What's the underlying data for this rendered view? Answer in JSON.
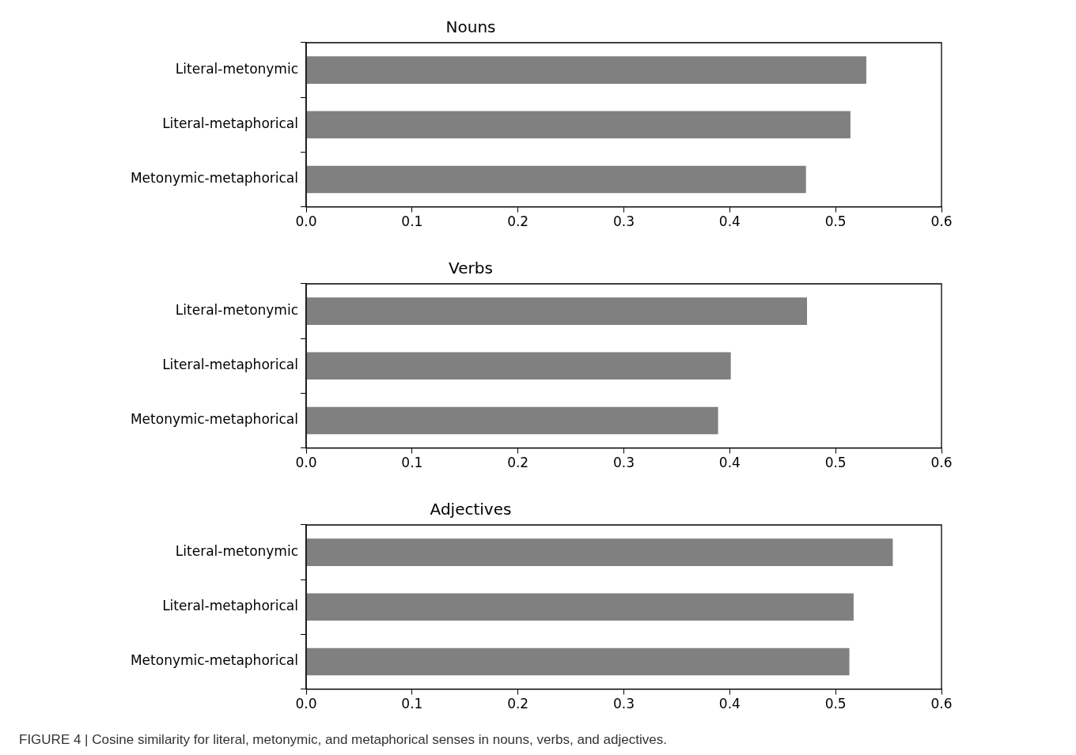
{
  "chart_data": [
    {
      "type": "bar",
      "orientation": "horizontal",
      "title": "Nouns",
      "categories": [
        "Literal-metonymic",
        "Literal-metaphorical",
        "Metonymic-metaphorical"
      ],
      "values": [
        0.529,
        0.514,
        0.472
      ],
      "color": "#808080",
      "xlim": [
        0,
        0.6
      ],
      "xticks": [
        {
          "value": 0,
          "label": "0.0"
        },
        {
          "value": 0.1,
          "label": "0.1"
        },
        {
          "value": 0.2,
          "label": "0.2"
        },
        {
          "value": 0.3,
          "label": "0.3"
        },
        {
          "value": 0.4,
          "label": "0.4"
        },
        {
          "value": 0.5,
          "label": "0.5"
        },
        {
          "value": 0.6,
          "label": "0.6"
        }
      ],
      "grid": false,
      "legend": false
    },
    {
      "type": "bar",
      "orientation": "horizontal",
      "title": "Verbs",
      "categories": [
        "Literal-metonymic",
        "Literal-metaphorical",
        "Metonymic-metaphorical"
      ],
      "values": [
        0.473,
        0.401,
        0.389
      ],
      "color": "#808080",
      "xlim": [
        0,
        0.6
      ],
      "xticks": [
        {
          "value": 0,
          "label": "0.0"
        },
        {
          "value": 0.1,
          "label": "0.1"
        },
        {
          "value": 0.2,
          "label": "0.2"
        },
        {
          "value": 0.3,
          "label": "0.3"
        },
        {
          "value": 0.4,
          "label": "0.4"
        },
        {
          "value": 0.5,
          "label": "0.5"
        },
        {
          "value": 0.6,
          "label": "0.6"
        }
      ],
      "grid": false,
      "legend": false
    },
    {
      "type": "bar",
      "orientation": "horizontal",
      "title": "Adjectives",
      "categories": [
        "Literal-metonymic",
        "Literal-metaphorical",
        "Metonymic-metaphorical"
      ],
      "values": [
        0.554,
        0.517,
        0.513
      ],
      "color": "#808080",
      "xlim": [
        0,
        0.6
      ],
      "xticks": [
        {
          "value": 0,
          "label": "0.0"
        },
        {
          "value": 0.1,
          "label": "0.1"
        },
        {
          "value": 0.2,
          "label": "0.2"
        },
        {
          "value": 0.3,
          "label": "0.3"
        },
        {
          "value": 0.4,
          "label": "0.4"
        },
        {
          "value": 0.5,
          "label": "0.5"
        },
        {
          "value": 0.6,
          "label": "0.6"
        }
      ],
      "grid": false,
      "legend": false,
      "annotations": [
        "FIGURE 4 | Cosine similarity for literal, metonymic, and metaphorical senses in nouns, verbs, and adjectives."
      ]
    }
  ]
}
